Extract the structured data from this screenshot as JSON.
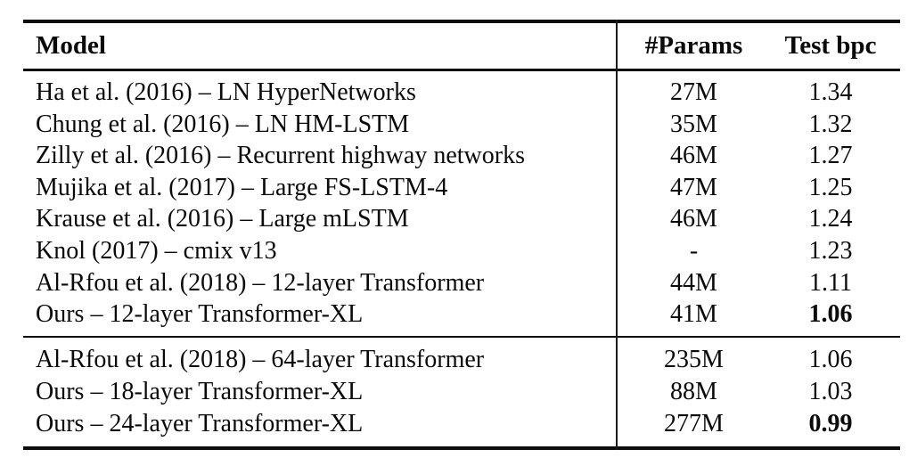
{
  "colors": {
    "background": "#ffffff",
    "text": "#0a0a0a",
    "rule": "#0c0c0c"
  },
  "table": {
    "headers": [
      "Model",
      "#Params",
      "Test bpc"
    ],
    "sections": [
      {
        "rows": [
          {
            "model": "Ha et al. (2016) – LN HyperNetworks",
            "params": "27M",
            "bpc": "1.34",
            "bpc_bold": false
          },
          {
            "model": "Chung et al. (2016) – LN HM-LSTM",
            "params": "35M",
            "bpc": "1.32",
            "bpc_bold": false
          },
          {
            "model": "Zilly et al. (2016) – Recurrent highway networks",
            "params": "46M",
            "bpc": "1.27",
            "bpc_bold": false
          },
          {
            "model": "Mujika et al. (2017) – Large FS-LSTM-4",
            "params": "47M",
            "bpc": "1.25",
            "bpc_bold": false
          },
          {
            "model": "Krause et al. (2016) – Large mLSTM",
            "params": "46M",
            "bpc": "1.24",
            "bpc_bold": false
          },
          {
            "model": "Knol (2017) – cmix v13",
            "params": "-",
            "bpc": "1.23",
            "bpc_bold": false
          },
          {
            "model": "Al-Rfou et al. (2018) – 12-layer Transformer",
            "params": "44M",
            "bpc": "1.11",
            "bpc_bold": false
          },
          {
            "model": "Ours – 12-layer Transformer-XL",
            "params": "41M",
            "bpc": "1.06",
            "bpc_bold": true
          }
        ]
      },
      {
        "rows": [
          {
            "model": "Al-Rfou et al. (2018) – 64-layer Transformer",
            "params": "235M",
            "bpc": "1.06",
            "bpc_bold": false
          },
          {
            "model": "Ours – 18-layer Transformer-XL",
            "params": "88M",
            "bpc": "1.03",
            "bpc_bold": false
          },
          {
            "model": "Ours – 24-layer Transformer-XL",
            "params": "277M",
            "bpc": "0.99",
            "bpc_bold": true
          }
        ]
      }
    ]
  }
}
